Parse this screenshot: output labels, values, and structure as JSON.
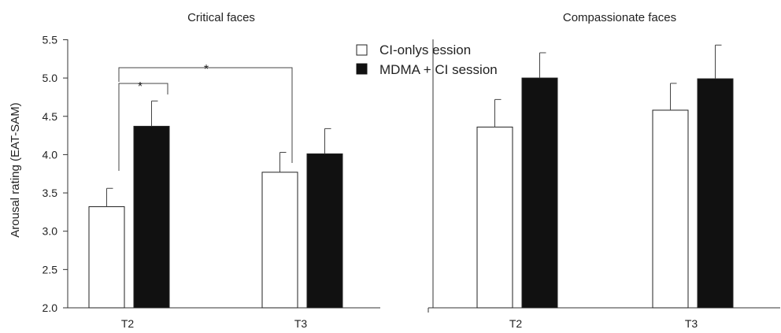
{
  "chart_data": [
    {
      "type": "bar",
      "title": "Critical faces",
      "ylabel": "Arousal rating (EAT-SAM)",
      "ylim": [
        2.0,
        5.5
      ],
      "yticks": [
        "2.0",
        "2.5",
        "3.0",
        "3.5",
        "4.0",
        "4.5",
        "5.0",
        "5.5"
      ],
      "categories": [
        "T2",
        "T3"
      ],
      "series": [
        {
          "name": "CI-onlys ession",
          "values": [
            3.32,
            3.77
          ],
          "errors": [
            0.24,
            0.26
          ],
          "color": "#ffffff"
        },
        {
          "name": "MDMA + CI session",
          "values": [
            4.37,
            4.01
          ],
          "errors": [
            0.33,
            0.33
          ],
          "color": "#111111"
        }
      ],
      "annotations": [
        {
          "text": "*",
          "from": "T2 CI-onlys ession",
          "to": "T2 MDMA + CI session"
        },
        {
          "text": "*",
          "from": "T2 CI-onlys ession",
          "to": "T3 CI-onlys ession"
        }
      ]
    },
    {
      "type": "bar",
      "title": "Compassionate faces",
      "ylim": [
        2.0,
        5.5
      ],
      "categories": [
        "T2",
        "T3"
      ],
      "series": [
        {
          "name": "CI-onlys ession",
          "values": [
            4.36,
            4.58
          ],
          "errors": [
            0.36,
            0.35
          ],
          "color": "#ffffff"
        },
        {
          "name": "MDMA + CI session",
          "values": [
            5.0,
            4.99
          ],
          "errors": [
            0.33,
            0.44
          ],
          "color": "#111111"
        }
      ]
    }
  ],
  "legend": {
    "placement": "top-center",
    "items": [
      {
        "label": "CI-onlys ession",
        "color": "#ffffff"
      },
      {
        "label": "MDMA + CI session",
        "color": "#111111"
      }
    ]
  }
}
